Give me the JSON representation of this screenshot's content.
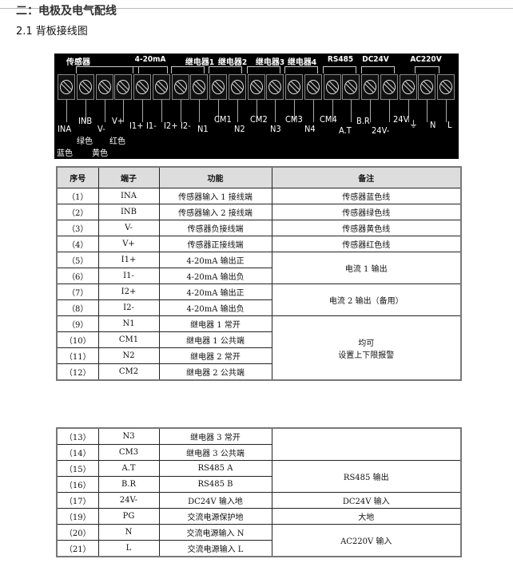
{
  "heading": "二：电极及电气配线",
  "subheading": "2.1 背板接线图",
  "diagram": {
    "groups": [
      "传感器",
      "4-20mA",
      "继电器1",
      "继电器2",
      "继电器3",
      "继电器4",
      "RS485",
      "DC24V",
      "AC220V"
    ],
    "terminals": [
      "INA",
      "INB",
      "V-",
      "V+",
      "I1+",
      "I1-",
      "I2+",
      "I2-",
      "N1",
      "CM1",
      "N2",
      "CM2",
      "N3",
      "CM3",
      "N4",
      "CM4",
      "A.T",
      "B.R",
      "24V-",
      "24V",
      "⏚",
      "N",
      "L"
    ],
    "colors": {
      "green": "绿色",
      "red": "红色",
      "blue": "蓝色",
      "yellow": "黄色"
    }
  },
  "table": {
    "headers": [
      "序号",
      "端子",
      "功能",
      "备注"
    ],
    "rows1": [
      [
        "（1）",
        "INA",
        "传感器输入 1 接线端",
        "传感器蓝色线"
      ],
      [
        "（2）",
        "INB",
        "传感器输入 2 接线端",
        "传感器绿色线"
      ],
      [
        "（3）",
        "V-",
        "传感器负接线端",
        "传感器黄色线"
      ],
      [
        "（4）",
        "V+",
        "传感器正接线端",
        "传感器红色线"
      ],
      [
        "（5）",
        "I1+",
        "4-20mA 输出正",
        "电流 1 输出"
      ],
      [
        "（6）",
        "I1-",
        "4-20mA 输出负",
        null
      ],
      [
        "（7）",
        "I2+",
        "4-20mA 输出正",
        "电流 2 输出（备用）"
      ],
      [
        "（8）",
        "I2-",
        "4-20mA 输出负",
        null
      ],
      [
        "（9）",
        "N1",
        "继电器 1 常开",
        "均可\n设置上下限报警"
      ],
      [
        "（10）",
        "CM1",
        "继电器 1 公共端",
        null
      ],
      [
        "（11）",
        "N2",
        "继电器 2 常开",
        null
      ],
      [
        "（12）",
        "CM2",
        "继电器 2 公共端",
        null
      ]
    ],
    "rows2": [
      [
        "（13）",
        "N3",
        "继电器 3 常开",
        ""
      ],
      [
        "（14）",
        "CM3",
        "继电器 3 公共端",
        null
      ],
      [
        "（15）",
        "A.T",
        "RS485 A",
        "RS485 输出"
      ],
      [
        "（16）",
        "B.R",
        "RS485 B",
        null
      ],
      [
        "（17）",
        "24V-",
        "DC24V 输入地",
        "DC24V 输入"
      ],
      [
        "（19）",
        "PG",
        "交流电源保护地",
        "大地"
      ],
      [
        "（20）",
        "N",
        "交流电源输入 N",
        "AC220V 输入"
      ],
      [
        "（21）",
        "L",
        "交流电源输入 L",
        null
      ]
    ]
  }
}
